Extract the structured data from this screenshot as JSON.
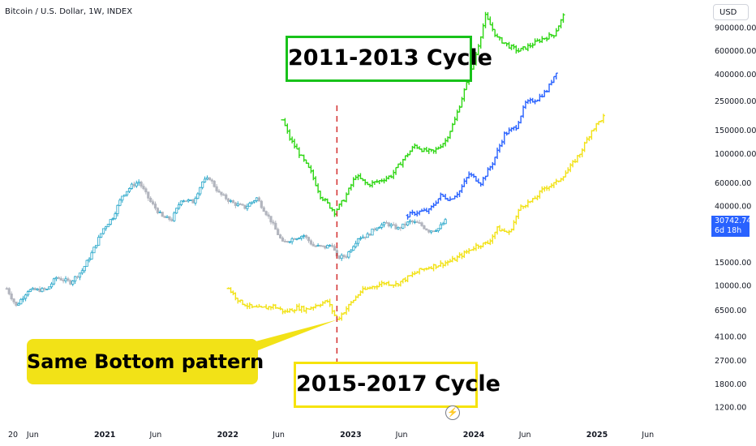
{
  "header": {
    "symbol": "Bitcoin / U.S. Dollar, 1W, INDEX"
  },
  "currency_button": "USD",
  "price_tag": {
    "price": "30742.74",
    "countdown": "6d 18h"
  },
  "annotations": {
    "cycle_2011_2013": "2011-2013 Cycle",
    "cycle_2015_2017": "2015-2017 Cycle",
    "same_bottom": "Same Bottom pattern"
  },
  "colors": {
    "background": "#ffffff",
    "candle_up": "#26a6c9",
    "candle_down": "#b2b5be",
    "cycle_2011_2013": "#2fd614",
    "cycle_2017_2021": "#2962ff",
    "cycle_2015_2017": "#f2e217",
    "bottom_line": "#d32f2f",
    "price_tag": "#2962ff"
  },
  "icons": {
    "flash": "flash-icon"
  },
  "chart_data": {
    "type": "line",
    "title": "Bitcoin / U.S. Dollar, 1W, INDEX",
    "xlabel": "",
    "ylabel": "",
    "y_scale": "log",
    "ylim": [
      900,
      1100000
    ],
    "xlim": [
      "2020-03-15",
      "2025-09-01"
    ],
    "grid": false,
    "y_ticks": [
      {
        "v": 900000,
        "label": "900000.00"
      },
      {
        "v": 600000,
        "label": "600000.00"
      },
      {
        "v": 400000,
        "label": "400000.00"
      },
      {
        "v": 250000,
        "label": "250000.00"
      },
      {
        "v": 150000,
        "label": "150000.00"
      },
      {
        "v": 100000,
        "label": "100000.00"
      },
      {
        "v": 60000,
        "label": "60000.00"
      },
      {
        "v": 40000,
        "label": "40000.00"
      },
      {
        "v": 15000,
        "label": "15000.00"
      },
      {
        "v": 10000,
        "label": "10000.00"
      },
      {
        "v": 6500,
        "label": "6500.00"
      },
      {
        "v": 4100,
        "label": "4100.00"
      },
      {
        "v": 2700,
        "label": "2700.00"
      },
      {
        "v": 1800,
        "label": "1800.00"
      },
      {
        "v": 1200,
        "label": "1200.00"
      }
    ],
    "x_ticks": [
      {
        "t": "2020-03-20",
        "label": "20"
      },
      {
        "t": "2020-06-01",
        "label": "Jun"
      },
      {
        "t": "2021-01-01",
        "label": "2021"
      },
      {
        "t": "2021-06-01",
        "label": "Jun"
      },
      {
        "t": "2022-01-01",
        "label": "2022"
      },
      {
        "t": "2022-06-01",
        "label": "Jun"
      },
      {
        "t": "2023-01-01",
        "label": "2023"
      },
      {
        "t": "2023-06-01",
        "label": "Jun"
      },
      {
        "t": "2024-01-01",
        "label": "2024"
      },
      {
        "t": "2024-06-01",
        "label": "Jun"
      },
      {
        "t": "2025-01-01",
        "label": "2025"
      },
      {
        "t": "2025-06-01",
        "label": "Jun"
      }
    ],
    "bottom_marker_date": "2022-11-21",
    "series": [
      {
        "kind": "btc",
        "values": [
          [
            "2020-03-16",
            9500
          ],
          [
            "2020-04-13",
            7000
          ],
          [
            "2020-05-18",
            9200
          ],
          [
            "2020-07-13",
            9300
          ],
          [
            "2020-08-10",
            11500
          ],
          [
            "2020-09-21",
            10600
          ],
          [
            "2020-10-26",
            13000
          ],
          [
            "2020-11-23",
            17500
          ],
          [
            "2020-12-28",
            27000
          ],
          [
            "2021-01-25",
            33000
          ],
          [
            "2021-02-22",
            48000
          ],
          [
            "2021-03-22",
            57000
          ],
          [
            "2021-04-12",
            61000
          ],
          [
            "2021-05-17",
            43000
          ],
          [
            "2021-06-21",
            33000
          ],
          [
            "2021-07-19",
            31500
          ],
          [
            "2021-08-16",
            45000
          ],
          [
            "2021-09-20",
            43000
          ],
          [
            "2021-10-18",
            61000
          ],
          [
            "2021-11-08",
            65000
          ],
          [
            "2021-12-06",
            50000
          ],
          [
            "2022-01-17",
            42000
          ],
          [
            "2022-02-21",
            39000
          ],
          [
            "2022-03-28",
            46000
          ],
          [
            "2022-05-09",
            31000
          ],
          [
            "2022-06-13",
            21000
          ],
          [
            "2022-07-18",
            23000
          ],
          [
            "2022-08-15",
            24000
          ],
          [
            "2022-09-12",
            20000
          ],
          [
            "2022-10-17",
            19500
          ],
          [
            "2022-11-07",
            20500
          ],
          [
            "2022-11-21",
            16200
          ],
          [
            "2022-12-19",
            16800
          ],
          [
            "2023-01-23",
            23000
          ],
          [
            "2023-02-20",
            24000
          ],
          [
            "2023-03-20",
            28000
          ],
          [
            "2023-04-17",
            29500
          ],
          [
            "2023-05-22",
            27000
          ],
          [
            "2023-06-26",
            30500
          ],
          [
            "2023-07-24",
            29300
          ],
          [
            "2023-08-21",
            26000
          ],
          [
            "2023-09-18",
            27000
          ],
          [
            "2023-10-09",
            30742.74
          ]
        ]
      },
      {
        "kind": "cycle_2011_2013",
        "name": "2011-2013 Cycle",
        "values": [
          [
            "2022-06-13",
            180000
          ],
          [
            "2022-07-04",
            130000
          ],
          [
            "2022-08-01",
            100000
          ],
          [
            "2022-09-05",
            72000
          ],
          [
            "2022-10-03",
            48000
          ],
          [
            "2022-11-14",
            36000
          ],
          [
            "2022-12-12",
            45000
          ],
          [
            "2023-01-16",
            68000
          ],
          [
            "2023-02-20",
            58000
          ],
          [
            "2023-03-27",
            62000
          ],
          [
            "2023-05-01",
            68000
          ],
          [
            "2023-06-05",
            90000
          ],
          [
            "2023-07-10",
            115000
          ],
          [
            "2023-08-07",
            105000
          ],
          [
            "2023-09-04",
            103000
          ],
          [
            "2023-10-09",
            125000
          ],
          [
            "2023-11-06",
            180000
          ],
          [
            "2023-12-04",
            300000
          ],
          [
            "2024-01-01",
            480000
          ],
          [
            "2024-02-05",
            1100000
          ],
          [
            "2024-03-11",
            750000
          ],
          [
            "2024-04-15",
            650000
          ],
          [
            "2024-05-13",
            600000
          ],
          [
            "2024-06-17",
            660000
          ],
          [
            "2024-07-22",
            740000
          ],
          [
            "2024-08-26",
            800000
          ],
          [
            "2024-09-23",
            1100000
          ]
        ]
      },
      {
        "kind": "cycle_2017_2021",
        "values": [
          [
            "2023-06-19",
            34000
          ],
          [
            "2023-07-17",
            36000
          ],
          [
            "2023-08-21",
            37000
          ],
          [
            "2023-09-25",
            48000
          ],
          [
            "2023-10-23",
            45000
          ],
          [
            "2023-11-20",
            52000
          ],
          [
            "2023-12-18",
            70000
          ],
          [
            "2024-01-22",
            60000
          ],
          [
            "2024-02-26",
            85000
          ],
          [
            "2024-04-01",
            140000
          ],
          [
            "2024-05-06",
            160000
          ],
          [
            "2024-06-03",
            240000
          ],
          [
            "2024-07-08",
            260000
          ],
          [
            "2024-08-05",
            300000
          ],
          [
            "2024-09-02",
            420000
          ]
        ]
      },
      {
        "kind": "cycle_2015_2017",
        "name": "2015-2017 Cycle",
        "values": [
          [
            "2022-01-03",
            9500
          ],
          [
            "2022-02-07",
            7500
          ],
          [
            "2022-03-14",
            6800
          ],
          [
            "2022-04-11",
            6700
          ],
          [
            "2022-05-16",
            7000
          ],
          [
            "2022-06-20",
            6300
          ],
          [
            "2022-07-25",
            6800
          ],
          [
            "2022-08-22",
            6600
          ],
          [
            "2022-09-26",
            7200
          ],
          [
            "2022-10-24",
            7600
          ],
          [
            "2022-11-21",
            5500
          ],
          [
            "2022-12-19",
            6700
          ],
          [
            "2023-01-30",
            9000
          ],
          [
            "2023-03-06",
            9800
          ],
          [
            "2023-04-10",
            10500
          ],
          [
            "2023-05-15",
            10200
          ],
          [
            "2023-06-19",
            11500
          ],
          [
            "2023-07-24",
            13000
          ],
          [
            "2023-08-21",
            13800
          ],
          [
            "2023-09-25",
            14500
          ],
          [
            "2023-10-30",
            15500
          ],
          [
            "2023-12-04",
            17500
          ],
          [
            "2024-01-08",
            20000
          ],
          [
            "2024-02-12",
            21000
          ],
          [
            "2024-03-11",
            27000
          ],
          [
            "2024-04-15",
            25000
          ],
          [
            "2024-05-20",
            40000
          ],
          [
            "2024-06-24",
            44000
          ],
          [
            "2024-07-29",
            55000
          ],
          [
            "2024-09-02",
            60000
          ],
          [
            "2024-10-07",
            75000
          ],
          [
            "2024-11-11",
            100000
          ],
          [
            "2024-12-16",
            150000
          ],
          [
            "2025-01-20",
            190000
          ]
        ]
      }
    ]
  }
}
